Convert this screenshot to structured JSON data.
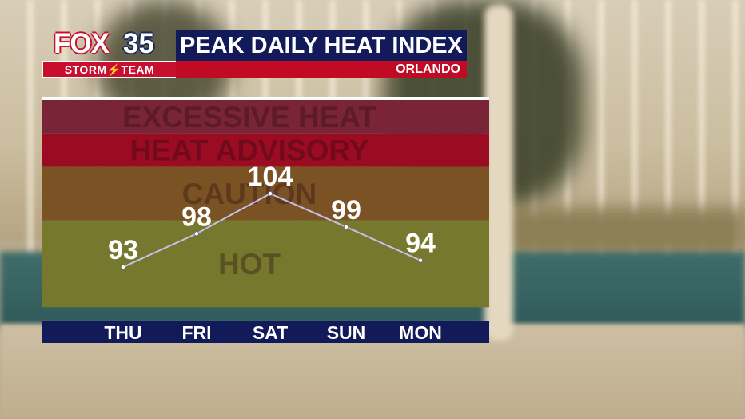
{
  "header": {
    "logo_fox": "FOX",
    "logo_num": "35",
    "logo_team": "STORM⚡TEAM",
    "title": "PEAK DAILY HEAT INDEX",
    "city": "ORLANDO"
  },
  "colors": {
    "navy": "#121a5a",
    "red": "#c10b24",
    "excessive_heat": "#7a2438",
    "heat_advisory": "#9b0b22",
    "caution": "#7a5224",
    "hot": "#76782e",
    "line": "#b9b6e6"
  },
  "chart_data": {
    "type": "line",
    "title": "PEAK DAILY HEAT INDEX",
    "subtitle": "ORLANDO",
    "xlabel": "",
    "ylabel": "",
    "categories": [
      "THU",
      "FRI",
      "SAT",
      "SUN",
      "MON"
    ],
    "series": [
      {
        "values": [
          93,
          98,
          104,
          99,
          94
        ]
      }
    ],
    "data_labels": [
      "93",
      "98",
      "104",
      "99",
      "94"
    ],
    "ylim": [
      85,
      118
    ],
    "bands": [
      {
        "label": "EXCESSIVE HEAT",
        "from": 113,
        "to": 118,
        "color": "#7a2438"
      },
      {
        "label": "HEAT ADVISORY",
        "from": 108,
        "to": 113,
        "color": "#9b0b22"
      },
      {
        "label": "CAUTION",
        "from": 100,
        "to": 108,
        "color": "#7a5224"
      },
      {
        "label": "HOT",
        "from": 87,
        "to": 100,
        "color": "#76782e"
      }
    ],
    "grid": false,
    "legend": "none"
  }
}
